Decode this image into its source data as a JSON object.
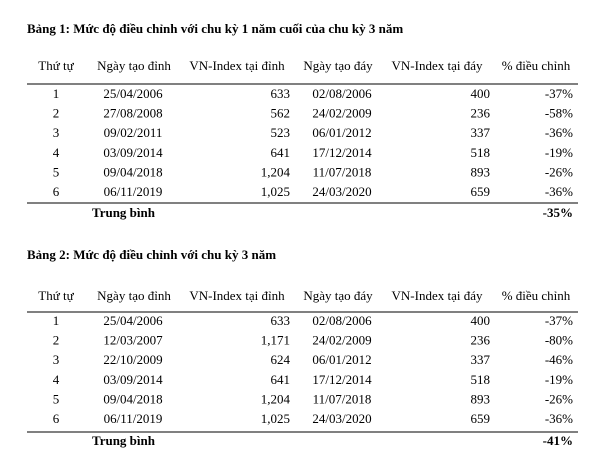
{
  "tables": [
    {
      "title": "Bảng 1: Mức độ điều chỉnh với chu kỳ 1 năm cuối của chu kỳ 3 năm",
      "headers": [
        "Thứ tự",
        "Ngày tạo đỉnh",
        "VN-Index tại đỉnh",
        "Ngày tạo đáy",
        "VN-Index tại đáy",
        "% điều chỉnh"
      ],
      "rows": [
        [
          "1",
          "25/04/2006",
          "633",
          "02/08/2006",
          "400",
          "-37%"
        ],
        [
          "2",
          "27/08/2008",
          "562",
          "24/02/2009",
          "236",
          "-58%"
        ],
        [
          "3",
          "09/02/2011",
          "523",
          "06/01/2012",
          "337",
          "-36%"
        ],
        [
          "4",
          "03/09/2014",
          "641",
          "17/12/2014",
          "518",
          "-19%"
        ],
        [
          "5",
          "09/04/2018",
          "1,204",
          "11/07/2018",
          "893",
          "-26%"
        ],
        [
          "6",
          "06/11/2019",
          "1,025",
          "24/03/2020",
          "659",
          "-36%"
        ]
      ],
      "average": {
        "label": "Trung bình",
        "value": "-35%"
      }
    },
    {
      "title": "Bảng 2: Mức độ điều chỉnh với chu kỳ 3 năm",
      "headers": [
        "Thứ tự",
        "Ngày tạo đỉnh",
        "VN-Index tại đỉnh",
        "Ngày tạo đáy",
        "VN-Index tại đáy",
        "% điều chỉnh"
      ],
      "rows": [
        [
          "1",
          "25/04/2006",
          "633",
          "02/08/2006",
          "400",
          "-37%"
        ],
        [
          "2",
          "12/03/2007",
          "1,171",
          "24/02/2009",
          "236",
          "-80%"
        ],
        [
          "3",
          "22/10/2009",
          "624",
          "06/01/2012",
          "337",
          "-46%"
        ],
        [
          "4",
          "03/09/2014",
          "641",
          "17/12/2014",
          "518",
          "-19%"
        ],
        [
          "5",
          "09/04/2018",
          "1,204",
          "11/07/2018",
          "893",
          "-26%"
        ],
        [
          "6",
          "06/11/2019",
          "1,025",
          "24/03/2020",
          "659",
          "-36%"
        ]
      ],
      "average": {
        "label": "Trung bình",
        "value": "-41%"
      }
    }
  ]
}
